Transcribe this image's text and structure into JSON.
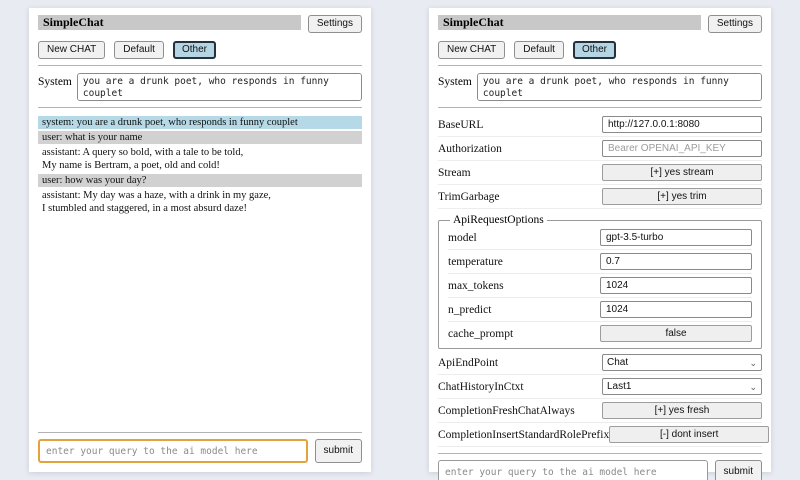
{
  "app": {
    "title": "SimpleChat",
    "settings_label": "Settings",
    "toolbar": {
      "new_chat": "New CHAT",
      "default": "Default",
      "other": "Other"
    },
    "system_label": "System",
    "system_prompt": "you are a drunk poet, who responds in funny couplet",
    "query_placeholder": "enter your query to the ai model here",
    "submit_label": "submit"
  },
  "chat": {
    "messages": [
      {
        "role": "system",
        "text": "system: you are a drunk poet, who responds in funny couplet"
      },
      {
        "role": "user",
        "text": "user: what is your name"
      },
      {
        "role": "assistant",
        "text": "assistant: A query so bold, with a tale to be told,\nMy name is Bertram, a poet, old and cold!"
      },
      {
        "role": "user",
        "text": "user: how was your day?"
      },
      {
        "role": "assistant",
        "text": "assistant: My day was a haze, with a drink in my gaze,\nI stumbled and staggered, in a most absurd daze!"
      }
    ]
  },
  "settings": {
    "base_url": {
      "label": "BaseURL",
      "value": "http://127.0.0.1:8080"
    },
    "authorization": {
      "label": "Authorization",
      "placeholder": "Bearer OPENAI_API_KEY"
    },
    "stream": {
      "label": "Stream",
      "value": "[+] yes stream"
    },
    "trim_garbage": {
      "label": "TrimGarbage",
      "value": "[+] yes trim"
    },
    "api_request_options": {
      "legend": "ApiRequestOptions",
      "model": {
        "label": "model",
        "value": "gpt-3.5-turbo"
      },
      "temperature": {
        "label": "temperature",
        "value": "0.7"
      },
      "max_tokens": {
        "label": "max_tokens",
        "value": "1024"
      },
      "n_predict": {
        "label": "n_predict",
        "value": "1024"
      },
      "cache_prompt": {
        "label": "cache_prompt",
        "value": "false"
      }
    },
    "api_endpoint": {
      "label": "ApiEndPoint",
      "value": "Chat"
    },
    "chat_history_in_ctxt": {
      "label": "ChatHistoryInCtxt",
      "value": "Last1"
    },
    "completion_fresh_chat_always": {
      "label": "CompletionFreshChatAlways",
      "value": "[+] yes fresh"
    },
    "completion_insert_standard_role_prefix": {
      "label": "CompletionInsertStandardRolePrefix",
      "value": "[-] dont insert"
    }
  },
  "icons": {
    "chevron_down": "⌄"
  },
  "colors": {
    "page_background": "#e9ebf3",
    "title_bar": "#c8c8c8",
    "selected_button_bg": "#b5d5e2",
    "selected_button_border": "#25313d",
    "system_message_bg": "#b5d9e6",
    "user_message_bg": "#d1d1d1",
    "focused_input_border": "#e2a33c"
  }
}
